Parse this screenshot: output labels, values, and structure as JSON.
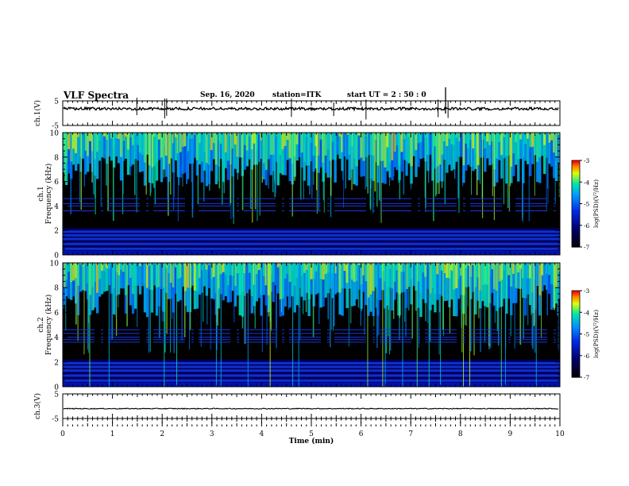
{
  "header": {
    "title": "VLF Spectra",
    "date": "Sep. 16, 2020",
    "station": "station=ITK",
    "start": "start  UT  =   2 : 50 : 0"
  },
  "chart_data": {
    "type": "heatmap",
    "xlabel": "Time (min)",
    "xlim": [
      0,
      10
    ],
    "xticks": [
      "0",
      "1",
      "2",
      "3",
      "4",
      "5",
      "6",
      "7",
      "8",
      "9",
      "10"
    ],
    "panels": [
      {
        "id": "ch1-waveform",
        "type": "line",
        "ylabel": "ch.1(V)",
        "ylim": [
          -5,
          5
        ],
        "yticks": [
          "5",
          "-5"
        ]
      },
      {
        "id": "ch1-spectrogram",
        "type": "heatmap",
        "ylabel": "Frequency (kHz)",
        "channel_label": "ch.1",
        "ylim": [
          0,
          10
        ],
        "yticks": [
          "0",
          "2",
          "4",
          "6",
          "8",
          "10"
        ],
        "colorbar": {
          "label": "log(PSD)(V²/Hz)",
          "ticks": [
            "-3",
            "-4",
            "-5",
            "-6",
            "-7"
          ],
          "range": [
            -7,
            -3
          ]
        }
      },
      {
        "id": "ch2-spectrogram",
        "type": "heatmap",
        "ylabel": "Frequency (kHz)",
        "channel_label": "ch.2",
        "ylim": [
          0,
          10
        ],
        "yticks": [
          "0",
          "2",
          "4",
          "6",
          "8",
          "10"
        ],
        "colorbar": {
          "label": "log(PSD)(V²/Hz)",
          "ticks": [
            "-3",
            "-4",
            "-5",
            "-6",
            "-7"
          ],
          "range": [
            -7,
            -3
          ]
        }
      },
      {
        "id": "ch3-waveform",
        "type": "line",
        "ylabel": "ch.3(V)",
        "ylim": [
          -5,
          5
        ],
        "yticks": [
          "5",
          "-5"
        ]
      }
    ],
    "spectral_features": {
      "noise_bands_khz": [
        1.9,
        1.6,
        1.3,
        0.9,
        0.5
      ],
      "ch1_tone_lines_khz": [
        4.6,
        4.2,
        4.0,
        3.6
      ],
      "ch2_tone_lines_khz": [
        4.6,
        4.3,
        4.0,
        3.8,
        3.6
      ],
      "ch1_spikes_min": [
        1.49,
        2.05,
        2.09,
        4.6,
        5.45,
        6.1,
        7.55,
        7.75
      ],
      "ch1_big_spike_min": 7.7
    },
    "colors": {
      "low": "#000000",
      "mid_low": "#0000c8",
      "mid": "#0090ff",
      "mid_high": "#00e0a0",
      "high": "#ffff00",
      "peak": "#ff0000"
    }
  }
}
